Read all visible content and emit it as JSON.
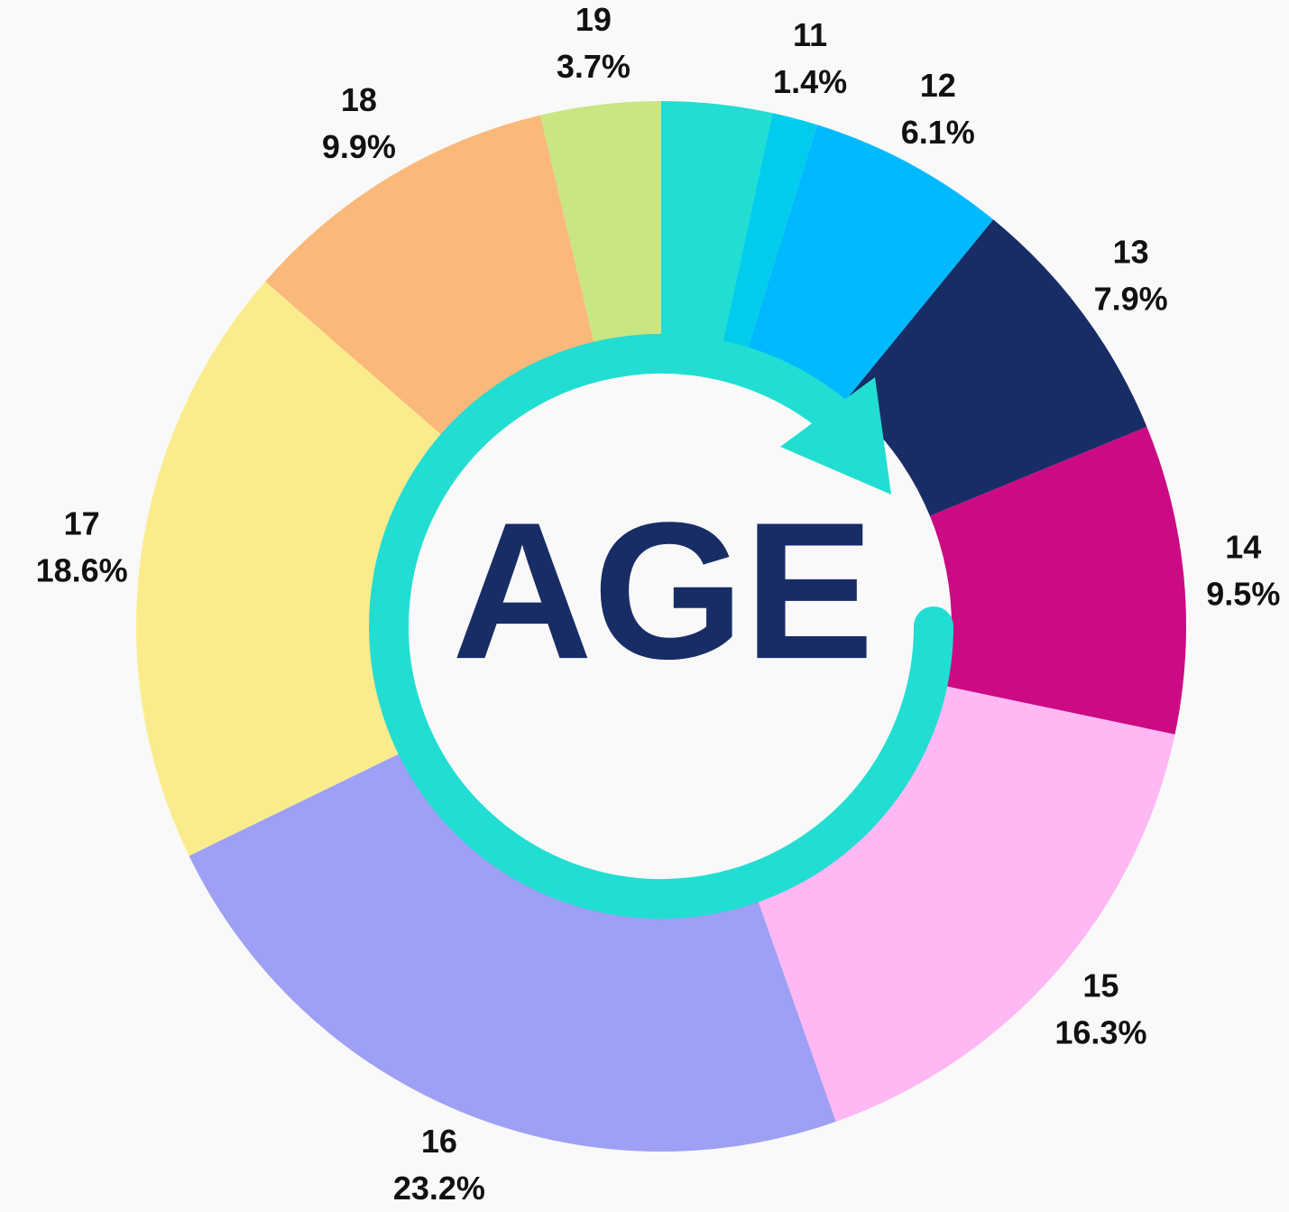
{
  "chart_data": {
    "type": "donut",
    "title": "AGE",
    "categories": [
      null,
      "11",
      "12",
      "13",
      "14",
      "15",
      "16",
      "17",
      "18",
      "19"
    ],
    "values": [
      3.4,
      1.4,
      6.1,
      7.9,
      9.5,
      16.3,
      23.2,
      18.6,
      9.9,
      3.7
    ],
    "value_labels": [
      null,
      "1.4%",
      "6.1%",
      "7.9%",
      "9.5%",
      "16.3%",
      "23.2%",
      "18.6%",
      "9.9%",
      "3.7%"
    ],
    "colors": [
      "#22ddd2",
      "#00cdeb",
      "#00b9ff",
      "#182d66",
      "#cc0a84",
      "#ffb8f3",
      "#9da0f4",
      "#faec8c",
      "#fab97a",
      "#c8e682"
    ]
  }
}
